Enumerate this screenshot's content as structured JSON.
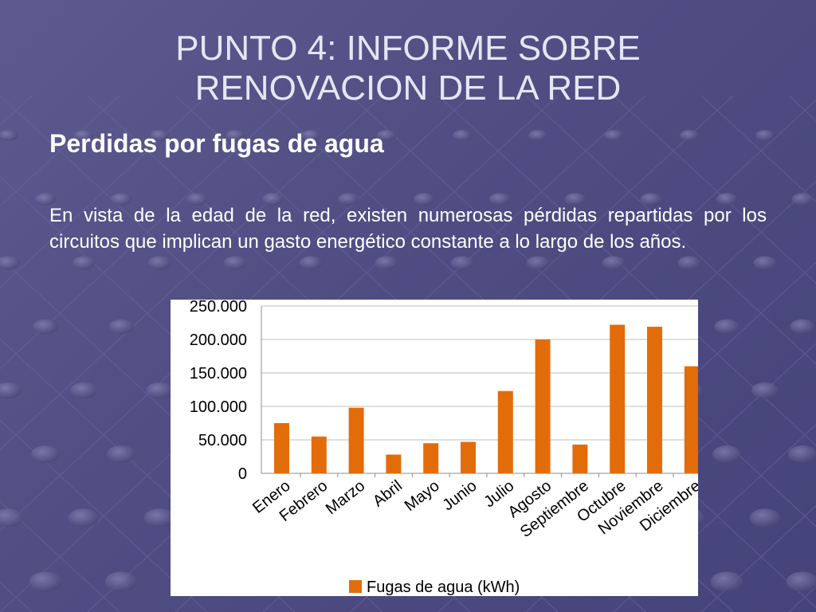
{
  "slide": {
    "title_line1": "PUNTO 4: INFORME SOBRE",
    "title_line2": "RENOVACION DE LA RED",
    "subtitle": "Perdidas por fugas de agua",
    "body": "En vista de la edad de la red, existen numerosas pérdidas repartidas por los circuitos que implican un gasto energético constante a lo largo de los años."
  },
  "chart_data": {
    "type": "bar",
    "categories": [
      "Enero",
      "Febrero",
      "Marzo",
      "Abril",
      "Mayo",
      "Junio",
      "Julio",
      "Agosto",
      "Septiembre",
      "Octubre",
      "Noviembre",
      "Diciembre"
    ],
    "series": [
      {
        "name": "Fugas de agua (kWh)",
        "values": [
          75000,
          55000,
          98000,
          28000,
          45000,
          47000,
          123000,
          200000,
          43000,
          222000,
          219000,
          160000
        ],
        "color": "#e36c0a"
      }
    ],
    "yticks": [
      "0",
      "50.000",
      "100.000",
      "150.000",
      "200.000",
      "250.000"
    ],
    "ylim": [
      0,
      250000
    ],
    "grid": true,
    "legend_position": "bottom"
  }
}
